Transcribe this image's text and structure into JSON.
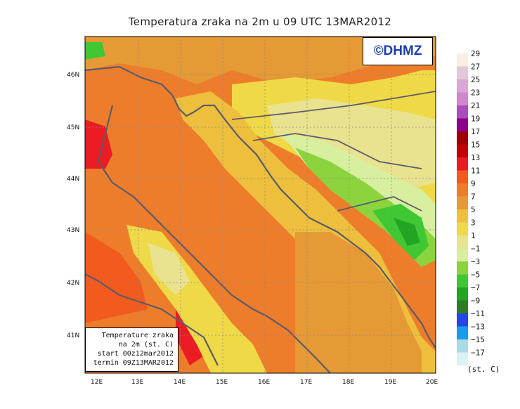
{
  "title": "Temperatura zraka na 2m u 09 UTC 13MAR2012",
  "logo_text": "©DHMZ",
  "info_box": {
    "line1": "Temperature zraka",
    "line2": "na 2m (st. C)",
    "line3": "start 00z12mar2012",
    "line4": "termin 09Z13MAR2012"
  },
  "legend": {
    "unit": "(st. C)",
    "labels": [
      "29",
      "27",
      "25",
      "23",
      "21",
      "19",
      "17",
      "15",
      "13",
      "11",
      "9",
      "7",
      "5",
      "3",
      "1",
      "−1",
      "−3",
      "−5",
      "−7",
      "−9",
      "−11",
      "−13",
      "−15",
      "−17"
    ],
    "colors": [
      "#fbeee3",
      "#e3c8dc",
      "#dba6d6",
      "#cf86cf",
      "#ad4cbd",
      "#8c008c",
      "#a00000",
      "#c10000",
      "#ec1c24",
      "#f25a1e",
      "#ee7d2b",
      "#e59a36",
      "#eebf3c",
      "#efd946",
      "#e9e28e",
      "#d7ef9e",
      "#8cd43e",
      "#3fc734",
      "#22a521",
      "#2c7d26",
      "#2545e8",
      "#169ceb",
      "#a8dbe5",
      "#d9f3f7"
    ]
  },
  "axes": {
    "x_ticks": [
      "12E",
      "13E",
      "14E",
      "15E",
      "16E",
      "17E",
      "18E",
      "19E",
      "20E"
    ],
    "y_ticks": [
      "46N",
      "45N",
      "44N",
      "43N",
      "42N",
      "41N"
    ]
  },
  "colors": {
    "sea": "#ee7d2b",
    "coast": "#5b5b6b"
  }
}
